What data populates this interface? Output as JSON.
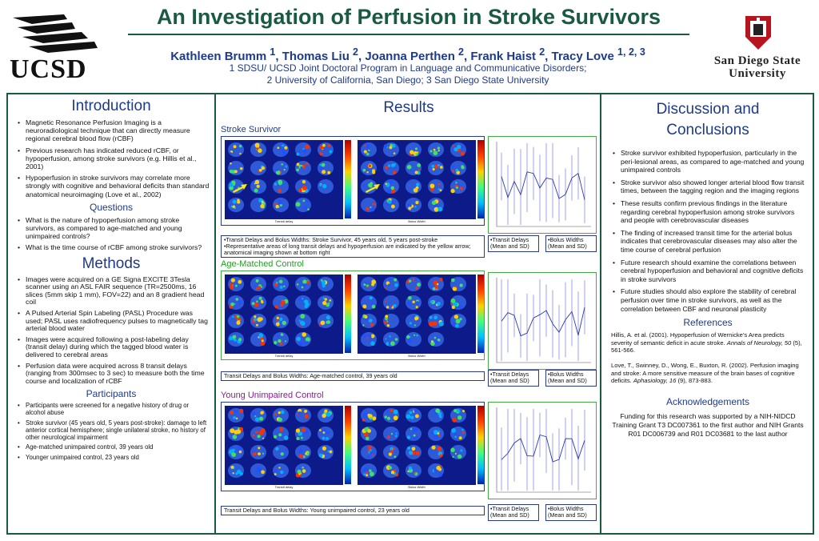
{
  "header": {
    "title": "An Investigation of Perfusion in Stroke Survivors",
    "authors_html": "Kathleen Brumm <sup>1</sup>, Thomas Liu <sup>2</sup>, Joanna Perthen <sup>2</sup>, Frank Haist <sup>2</sup>, Tracy Love <sup>1, 2, 3</sup>",
    "authors": "Kathleen Brumm 1, Thomas Liu 2, Joanna Perthen 2, Frank Haist 2, Tracy Love 1, 2, 3",
    "affiliation1": "1 SDSU/ UCSD Joint Doctoral Program in Language and Communicative Disorders;",
    "affiliation2": "2 University of California, San Diego;   3 San Diego State University",
    "left_logo_text": "UCSD",
    "right_logo_line1": "San Diego State",
    "right_logo_line2": "University"
  },
  "introduction": {
    "title": "Introduction",
    "items": [
      "Magnetic Resonance Perfusion Imaging is a neuroradiological technique that can directly measure regional cerebral blood flow (rCBF)",
      "Previous research has indicated reduced rCBF, or hypoperfusion, among stroke survivors (e.g. Hillis et al., 2001)",
      "Hypoperfusion in stroke survivors may correlate more strongly with cognitive and behavioral deficits than standard anatomical neuroimaging (Love et al., 2002)"
    ]
  },
  "questions": {
    "title": "Questions",
    "items": [
      "What is the nature of hypoperfusion among stroke survivors, as compared to age-matched and young unimpaired controls?",
      "What is the time course of rCBF among stroke survivors?"
    ]
  },
  "methods": {
    "title": "Methods",
    "items": [
      "Images were acquired on a GE Signa EXCITE 3Tesla scanner using an ASL FAIR sequence (TR=2500ms, 16 slices (5mm skip 1 mm), FOV=22) and an 8 gradient head coil",
      "A Pulsed Arterial Spin Labeling (PASL) Procedure was used; PASL uses radiofrequency pulses to magnetically tag arterial blood water",
      "Images were acquired following a post-labeling delay (transit delay) during which the tagged blood water is delivered to cerebral areas",
      "Perfusion data were acquired across 8 transit delays (ranging from 300msec to 3 sec) to measure both the time course and localization of rCBF"
    ]
  },
  "participants": {
    "title": "Participants",
    "items": [
      "Participants were screened for a negative history of drug or alcohol abuse",
      "Stroke survivor (45 years old, 5 years post-stroke): damage to left anterior cortical hemisphere; single unilateral stroke, no history of other neurological impairment",
      "Age-matched unimpaired control, 39 years old",
      "Younger unimpaired control, 23 years old"
    ]
  },
  "results": {
    "title": "Results",
    "groups": [
      {
        "label": "Stroke Survivor",
        "caption_lines": [
          "•Transit Delays and Bolus Widths: Stroke Survivor, 45 years old, 5 years post-stroke",
          "•Representative areas of long transit delays and hypoperfusion are indicated by the yellow arrow; anatomical imaging shown at bottom right"
        ],
        "scan_a_label": "Transit delay",
        "scan_b_label": "Bolus Width",
        "graph_transit_label": "•Transit Delays (Mean and SD)",
        "graph_bolus_label": "•Bolus Widths (Mean and SD)"
      },
      {
        "label": "Age-Matched Control",
        "caption_lines": [
          "Transit Delays and Bolus Widths: Age-matched control, 39 years old"
        ],
        "scan_a_label": "Transit delay",
        "scan_b_label": "Bolus Width",
        "graph_transit_label": "•Transit Delays (Mean and SD)",
        "graph_bolus_label": "•Bolus Widths (Mean and SD)"
      },
      {
        "label": "Young Unimpaired Control",
        "caption_lines": [
          "Transit Delays and Bolus Widths: Young unimpaired control, 23 years old"
        ],
        "scan_a_label": "Transit delay",
        "scan_b_label": "Bolus Width",
        "graph_transit_label": "•Transit Delays (Mean and SD)",
        "graph_bolus_label": "•Bolus Widths (Mean and SD)"
      }
    ]
  },
  "discussion": {
    "title_line1": "Discussion and",
    "title_line2": "Conclusions",
    "items": [
      "Stroke survivor exhibited hypoperfusion, particularly in the peri-lesional areas, as compared to age-matched and young unimpaired controls",
      "Stroke survivor also showed longer arterial blood flow transit times, between the tagging region and the imaging regions",
      "These results confirm previous findings in the literature regarding cerebral hypoperfusion among stroke survivors and people with cerebrovascular diseases",
      "The finding of increased transit time for the arterial bolus indicates that cerebrovascular diseases may also alter the time course of cerebral perfusion",
      "Future research should examine the correlations between cerebral hypoperfusion and behavioral and cognitive deficits in stroke survivors",
      "Future studies should also explore the stability of cerebral perfusion over time in stroke survivors, as well as the correlation between CBF and neuronal plasticity"
    ]
  },
  "references": {
    "title": "References",
    "items": [
      {
        "text": "Hillis, A. et al. (2001).  Hypoperfusion of Wernicke’s Area predicts severity of semantic deficit in acute stroke.  ",
        "journal": "Annals of Neurology, 50",
        "tail": " (5), 561-566."
      },
      {
        "text": "Love, T., Swinney, D., Wong, E., Buxton, R. (2002).  Perfusion imaging and stroke: A more sensitive measure of the brain bases of cognitive deficits.  ",
        "journal": "Aphasiology, 16",
        "tail": " (9), 873-883."
      }
    ]
  },
  "acknowledgements": {
    "title": "Acknowledgements",
    "text": "Funding for this research was supported by a NIH-NIDCD Training Grant T3 DC007361 to the first author and NIH Grants R01 DC006739 and R01 DC03681 to the last author"
  },
  "colors": {
    "title_green": "#1a5a45",
    "heading_blue": "#1e3a8a",
    "age_green": "#22a022",
    "young_purple": "#8a2090",
    "scan_background": "#0d1b8a"
  }
}
